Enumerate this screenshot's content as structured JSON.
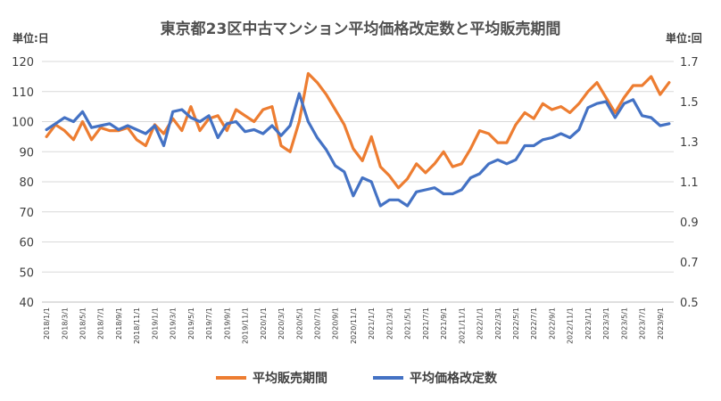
{
  "chart_data": {
    "type": "line",
    "title": "東京都23区中古マンション平均価格改定数と平均販売期間",
    "left_unit": "単位:日",
    "right_unit": "単位:回",
    "y_left": {
      "min": 40,
      "max": 120,
      "step": 10,
      "ticks": [
        "40",
        "50",
        "60",
        "70",
        "80",
        "90",
        "100",
        "110",
        "120"
      ]
    },
    "y_right": {
      "min": 0.5,
      "max": 1.7,
      "step": 0.2,
      "ticks": [
        "0.5",
        "0.7",
        "0.9",
        "1.1",
        "1.3",
        "1.5",
        "1.7"
      ]
    },
    "x_labels": [
      "2018/1/1",
      "2018/3/1",
      "2018/5/1",
      "2018/7/1",
      "2018/9/1",
      "2018/11/1",
      "2019/1/1",
      "2019/3/1",
      "2019/5/1",
      "2019/7/1",
      "2019/9/1",
      "2019/11/1",
      "2020/1/1",
      "2020/3/1",
      "2020/5/1",
      "2020/7/1",
      "2020/9/1",
      "2020/11/1",
      "2021/1/1",
      "2021/3/1",
      "2021/5/1",
      "2021/7/1",
      "2021/9/1",
      "2021/11/1",
      "2022/1/1",
      "2022/3/1",
      "2022/5/1",
      "2022/7/1",
      "2022/9/1",
      "2022/11/1",
      "2023/1/1",
      "2023/3/1",
      "2023/5/1",
      "2023/7/1",
      "2023/9/1"
    ],
    "series": [
      {
        "name": "平均販売期間",
        "axis": "left",
        "color": "#ED7D31",
        "values": [
          95,
          99,
          97,
          94,
          100,
          94,
          98,
          97,
          97,
          98,
          94,
          92,
          99,
          96,
          101,
          97,
          105,
          97,
          101,
          102,
          97,
          104,
          102,
          100,
          104,
          105,
          92,
          90,
          100,
          116,
          113,
          109,
          104,
          99,
          91,
          87,
          95,
          85,
          82,
          78,
          81,
          86,
          83,
          86,
          90,
          85,
          86,
          91,
          97,
          96,
          93,
          93,
          99,
          103,
          101,
          106,
          104,
          105,
          103,
          106,
          110,
          113,
          108,
          103,
          108,
          112,
          112,
          115,
          109,
          113
        ]
      },
      {
        "name": "平均価格改定数",
        "axis": "right",
        "color": "#4472C4",
        "values": [
          1.36,
          1.39,
          1.42,
          1.4,
          1.45,
          1.37,
          1.38,
          1.39,
          1.36,
          1.38,
          1.36,
          1.34,
          1.38,
          1.28,
          1.45,
          1.46,
          1.42,
          1.4,
          1.43,
          1.32,
          1.39,
          1.4,
          1.35,
          1.36,
          1.34,
          1.38,
          1.33,
          1.38,
          1.54,
          1.4,
          1.32,
          1.26,
          1.18,
          1.15,
          1.03,
          1.12,
          1.1,
          0.98,
          1.01,
          1.01,
          0.98,
          1.05,
          1.06,
          1.07,
          1.04,
          1.04,
          1.06,
          1.12,
          1.14,
          1.19,
          1.21,
          1.19,
          1.21,
          1.28,
          1.28,
          1.31,
          1.32,
          1.34,
          1.32,
          1.36,
          1.47,
          1.49,
          1.5,
          1.42,
          1.49,
          1.51,
          1.43,
          1.42,
          1.38,
          1.39
        ]
      }
    ],
    "grid": true,
    "legend_position": "bottom"
  }
}
